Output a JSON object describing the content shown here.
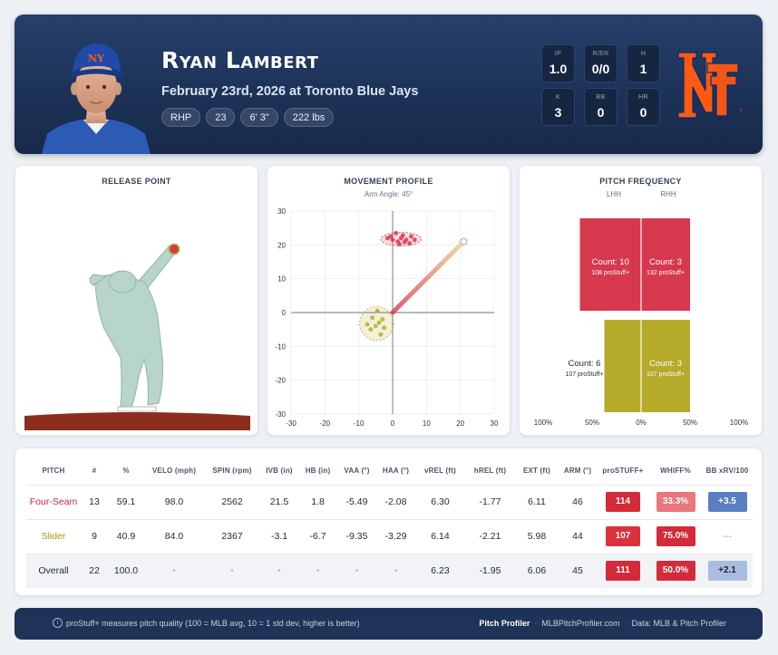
{
  "player": {
    "name": "Ryan Lambert",
    "game_line": "February 23rd, 2026 at Toronto Blue Jays",
    "chips": [
      "RHP",
      "23",
      "6' 3\"",
      "222 lbs"
    ]
  },
  "game_stats": [
    {
      "label": "IP",
      "value": "1.0"
    },
    {
      "label": "R/ER",
      "value": "0/0"
    },
    {
      "label": "H",
      "value": "1"
    },
    {
      "label": "K",
      "value": "3"
    },
    {
      "label": "BB",
      "value": "0"
    },
    {
      "label": "HR",
      "value": "0"
    }
  ],
  "colors": {
    "header_bg": "#1d3258",
    "fourseam": "#d6384e",
    "slider": "#b5aa2a",
    "mets_orange": "#ff5910",
    "mets_blue": "#002d72"
  },
  "release_point": {
    "title": "RELEASE POINT"
  },
  "movement_profile": {
    "title": "MOVEMENT PROFILE",
    "subtitle": "Arm Angle: 45°",
    "x_ticks": [
      "-30",
      "-20",
      "-10",
      "0",
      "10",
      "20",
      "30"
    ],
    "y_ticks": [
      "30",
      "20",
      "10",
      "0",
      "-10",
      "-20",
      "-30"
    ]
  },
  "pitch_frequency": {
    "title": "PITCH FREQUENCY",
    "lhh_label": "LHH",
    "rhh_label": "RHH",
    "x_ticks": [
      "100%",
      "50%",
      "0%",
      "50%",
      "100%"
    ],
    "cells": [
      {
        "pitch": "Four-Seam",
        "side": "LHH",
        "count": "Count: 10",
        "stuff": "108 proStuff+"
      },
      {
        "pitch": "Four-Seam",
        "side": "RHH",
        "count": "Count: 3",
        "stuff": "132 proStuff+"
      },
      {
        "pitch": "Slider",
        "side": "LHH",
        "count": "Count: 6",
        "stuff": "107 proStuff+"
      },
      {
        "pitch": "Slider",
        "side": "RHH",
        "count": "Count: 3",
        "stuff": "107 proStuff+"
      }
    ]
  },
  "chart_data": [
    {
      "type": "scatter",
      "title": "MOVEMENT PROFILE",
      "subtitle": "Arm Angle: 45°",
      "xlim": [
        -30,
        30
      ],
      "ylim": [
        -30,
        30
      ],
      "grid": true,
      "series": [
        {
          "name": "Four-Seam",
          "color": "#d6384e",
          "x": [
            -0.5,
            1.5,
            2.5,
            4,
            5,
            5.5,
            1,
            3,
            0,
            2,
            6.5,
            -1.5,
            3.5
          ],
          "y": [
            22.5,
            21,
            22,
            21.5,
            20.5,
            22.5,
            23.5,
            22.8,
            21.5,
            20.2,
            21.5,
            22,
            20.8
          ]
        },
        {
          "name": "Slider",
          "color": "#b5aa2a",
          "x": [
            -3,
            -4,
            -6,
            -5,
            -3.5,
            -2.5,
            -4.5,
            -6.5,
            -7.5
          ],
          "y": [
            -2,
            -3,
            -1.5,
            -4,
            -6.5,
            -4.5,
            0.5,
            -5,
            -3.5
          ]
        }
      ],
      "arm_angle_line": {
        "x": [
          0,
          21
        ],
        "y": [
          0,
          21
        ]
      }
    },
    {
      "type": "bar",
      "title": "PITCH FREQUENCY",
      "categories": [
        "Four-Seam",
        "Slider"
      ],
      "series": [
        {
          "name": "LHH",
          "values": [
            10,
            6
          ]
        },
        {
          "name": "RHH",
          "values": [
            3,
            3
          ]
        }
      ],
      "x_ticks": [
        "100%",
        "50%",
        "0%",
        "50%",
        "100%"
      ]
    }
  ],
  "table": {
    "headers": [
      "PITCH",
      "#",
      "%",
      "VELO (mph)",
      "SPIN (rpm)",
      "IVB (in)",
      "HB (in)",
      "VAA (°)",
      "HAA (°)",
      "vREL (ft)",
      "hREL (ft)",
      "EXT (ft)",
      "ARM (°)",
      "proSTUFF+",
      "WHIFF%",
      "BB xRV/100"
    ],
    "rows": [
      {
        "pitch": "Four-Seam",
        "count": "13",
        "pct": "59.1",
        "velo": "98.0",
        "spin": "2562",
        "ivb": "21.5",
        "hb": "1.8",
        "vaa": "-5.49",
        "haa": "-2.08",
        "vrel": "6.30",
        "hrel": "-1.77",
        "ext": "6.11",
        "arm": "46",
        "stuff": "114",
        "whiff": "33.3%",
        "xrv": "+3.5"
      },
      {
        "pitch": "Slider",
        "count": "9",
        "pct": "40.9",
        "velo": "84.0",
        "spin": "2367",
        "ivb": "-3.1",
        "hb": "-6.7",
        "vaa": "-9.35",
        "haa": "-3.29",
        "vrel": "6.14",
        "hrel": "-2.21",
        "ext": "5.98",
        "arm": "44",
        "stuff": "107",
        "whiff": "75.0%",
        "xrv": "---"
      },
      {
        "pitch": "Overall",
        "count": "22",
        "pct": "100.0",
        "velo": "•",
        "spin": "•",
        "ivb": "•",
        "hb": "•",
        "vaa": "•",
        "haa": "•",
        "vrel": "6.23",
        "hrel": "-1.95",
        "ext": "6.06",
        "arm": "45",
        "stuff": "111",
        "whiff": "50.0%",
        "xrv": "+2.1"
      }
    ]
  },
  "footer": {
    "note": "proStuff+ measures pitch quality (100 = MLB avg, 10 = 1 std dev, higher is better)",
    "brand": "Pitch Profiler",
    "site": "MLBPitchProfiler.com",
    "data_source": "Data: MLB & Pitch Profiler",
    "separator": "·"
  }
}
